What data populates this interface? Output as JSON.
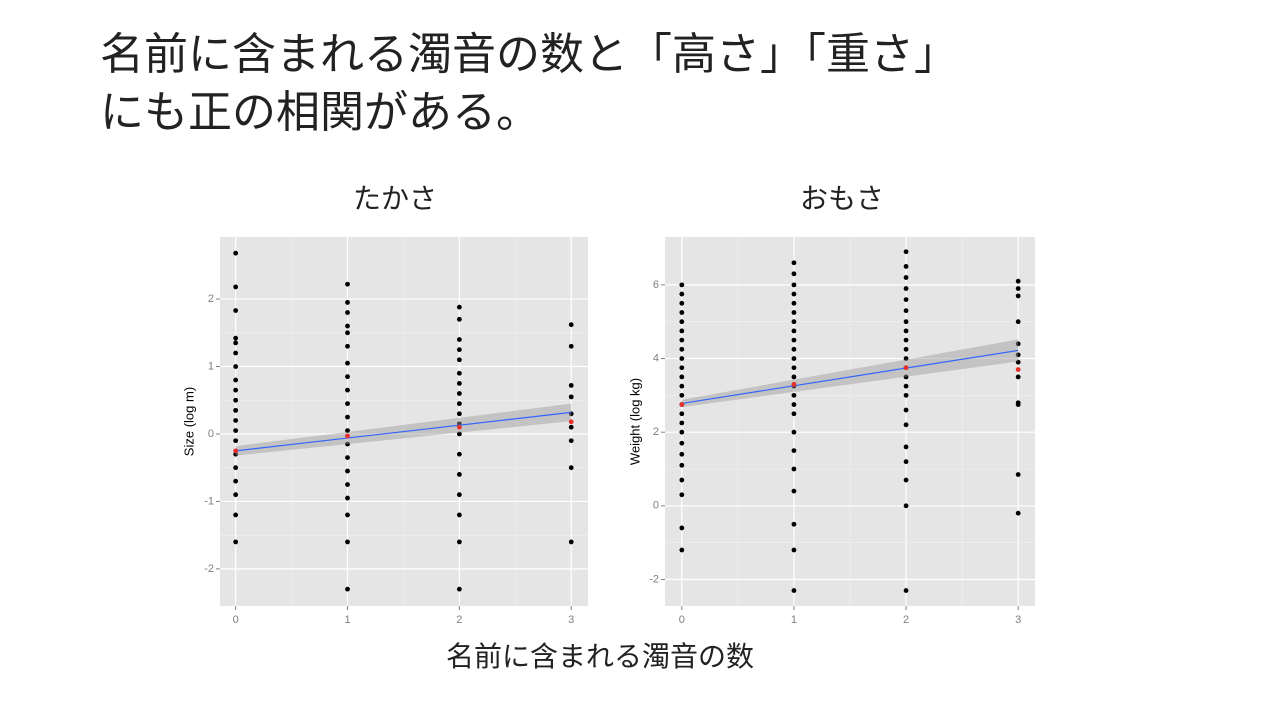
{
  "slide": {
    "title": [
      "名前に含まれる濁音の数と「高さ」「重さ」",
      "にも正の相関がある。"
    ],
    "xlabel": "名前に含まれる濁音の数"
  },
  "chart_data": [
    {
      "type": "scatter",
      "title": "たかさ",
      "ylabel": "Size (log m)",
      "xlim": [
        -0.14,
        3.15
      ],
      "ylim": [
        -2.55,
        2.92
      ],
      "xticks": [
        0,
        1,
        2,
        3
      ],
      "yticks": [
        -2,
        -1,
        0,
        1,
        2
      ],
      "grid": true,
      "series": [
        {
          "type": "scatter",
          "color": "#000000",
          "x": [
            0,
            0,
            0,
            0,
            0,
            0,
            0,
            0,
            0,
            0,
            0,
            0,
            0,
            0,
            0,
            0,
            0,
            0,
            0,
            0
          ],
          "values": [
            2.68,
            2.18,
            1.83,
            1.42,
            1.35,
            1.2,
            1.0,
            0.8,
            0.65,
            0.5,
            0.35,
            0.2,
            0.05,
            -0.1,
            -0.3,
            -0.5,
            -0.7,
            -0.9,
            -1.2,
            -1.6
          ]
        },
        {
          "type": "scatter",
          "color": "#000000",
          "x": [
            1,
            1,
            1,
            1,
            1,
            1,
            1,
            1,
            1,
            1,
            1,
            1,
            1,
            1,
            1,
            1,
            1,
            1,
            1,
            1
          ],
          "values": [
            2.22,
            1.95,
            1.8,
            1.6,
            1.5,
            1.3,
            1.05,
            0.85,
            0.65,
            0.45,
            0.25,
            0.05,
            -0.15,
            -0.35,
            -0.55,
            -0.75,
            -0.95,
            -1.2,
            -1.6,
            -2.3
          ]
        },
        {
          "type": "scatter",
          "color": "#000000",
          "x": [
            2,
            2,
            2,
            2,
            2,
            2,
            2,
            2,
            2,
            2,
            2,
            2,
            2,
            2,
            2,
            2,
            2,
            2
          ],
          "values": [
            1.88,
            1.7,
            1.4,
            1.25,
            1.1,
            0.9,
            0.75,
            0.6,
            0.45,
            0.3,
            0.15,
            0,
            -0.3,
            -0.6,
            -0.9,
            -1.2,
            -1.6,
            -2.3
          ]
        },
        {
          "type": "scatter",
          "color": "#000000",
          "x": [
            3,
            3,
            3,
            3,
            3,
            3,
            3,
            3,
            3
          ],
          "values": [
            1.62,
            1.3,
            0.72,
            0.55,
            0.3,
            0.1,
            -0.1,
            -0.5,
            -1.6
          ]
        },
        {
          "type": "line",
          "color": "#3366ff",
          "band_color": "#999999",
          "x": [
            0,
            3
          ],
          "values": [
            -0.25,
            0.32
          ],
          "lower": [
            -0.32,
            0.19
          ],
          "upper": [
            -0.18,
            0.45
          ]
        },
        {
          "type": "scatter",
          "color": "#e8302a",
          "x": [
            0,
            1,
            2,
            3
          ],
          "values": [
            -0.25,
            -0.03,
            0.1,
            0.18
          ]
        }
      ]
    },
    {
      "type": "scatter",
      "title": "おもさ",
      "ylabel": "Weight (log kg)",
      "xlim": [
        -0.15,
        3.15
      ],
      "ylim": [
        -2.72,
        7.3
      ],
      "xticks": [
        0,
        1,
        2,
        3
      ],
      "yticks": [
        -2,
        0,
        2,
        4,
        6
      ],
      "grid": true,
      "series": [
        {
          "type": "scatter",
          "color": "#000000",
          "x": [
            0,
            0,
            0,
            0,
            0,
            0,
            0,
            0,
            0,
            0,
            0,
            0,
            0,
            0,
            0,
            0,
            0,
            0,
            0,
            0,
            0,
            0,
            0,
            0
          ],
          "values": [
            6.0,
            5.75,
            5.5,
            5.25,
            5.0,
            4.75,
            4.5,
            4.25,
            4.0,
            3.75,
            3.5,
            3.25,
            3.0,
            2.75,
            2.5,
            2.25,
            2.0,
            1.7,
            1.4,
            1.1,
            0.7,
            0.3,
            -0.6,
            -1.2
          ]
        },
        {
          "type": "scatter",
          "color": "#000000",
          "x": [
            1,
            1,
            1,
            1,
            1,
            1,
            1,
            1,
            1,
            1,
            1,
            1,
            1,
            1,
            1,
            1,
            1,
            1,
            1,
            1,
            1,
            1,
            1,
            1
          ],
          "values": [
            6.6,
            6.3,
            6.0,
            5.75,
            5.5,
            5.25,
            5.0,
            4.75,
            4.5,
            4.25,
            4.0,
            3.75,
            3.5,
            3.25,
            3.0,
            2.75,
            2.5,
            2.0,
            1.5,
            1.0,
            0.4,
            -0.5,
            -1.2,
            -2.3
          ]
        },
        {
          "type": "scatter",
          "color": "#000000",
          "x": [
            2,
            2,
            2,
            2,
            2,
            2,
            2,
            2,
            2,
            2,
            2,
            2,
            2,
            2,
            2,
            2,
            2,
            2,
            2,
            2,
            2,
            2
          ],
          "values": [
            6.9,
            6.5,
            6.2,
            5.9,
            5.6,
            5.3,
            5.0,
            4.75,
            4.5,
            4.25,
            4.0,
            3.75,
            3.5,
            3.25,
            3.0,
            2.6,
            2.2,
            1.6,
            1.2,
            0.7,
            0.0,
            -2.3
          ]
        },
        {
          "type": "scatter",
          "color": "#000000",
          "x": [
            3,
            3,
            3,
            3,
            3,
            3,
            3,
            3,
            3,
            3,
            3,
            3
          ],
          "values": [
            6.1,
            5.9,
            5.7,
            5.0,
            4.4,
            4.1,
            3.9,
            3.5,
            2.8,
            2.75,
            0.85,
            -0.2
          ]
        },
        {
          "type": "line",
          "color": "#3366ff",
          "band_color": "#999999",
          "x": [
            0,
            3
          ],
          "values": [
            2.78,
            4.22
          ],
          "lower": [
            2.68,
            3.92
          ],
          "upper": [
            2.88,
            4.52
          ]
        },
        {
          "type": "scatter",
          "color": "#e8302a",
          "x": [
            0,
            1,
            2,
            3
          ],
          "values": [
            2.75,
            3.3,
            3.75,
            3.7
          ]
        }
      ]
    }
  ]
}
